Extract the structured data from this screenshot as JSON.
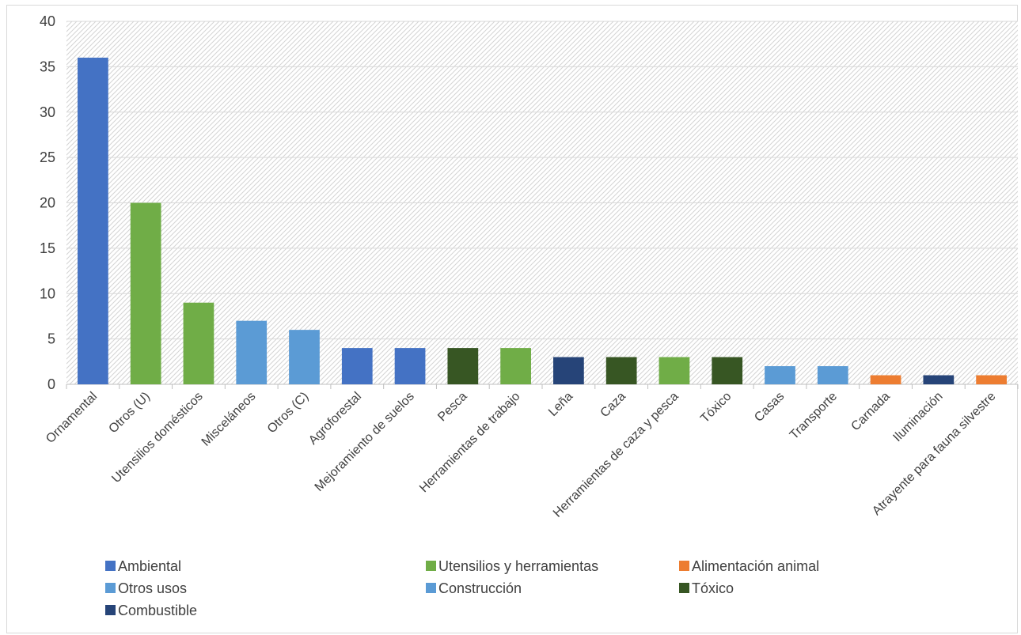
{
  "chart_data": {
    "type": "bar",
    "title": "",
    "xlabel": "",
    "ylabel": "",
    "ylim": [
      0,
      40
    ],
    "yticks": [
      0,
      5,
      10,
      15,
      20,
      25,
      30,
      35,
      40
    ],
    "grid": true,
    "legend_position": "bottom",
    "groups": [
      {
        "name": "Ambiental",
        "color": "#4472C4"
      },
      {
        "name": "Utensilios y herramientas",
        "color": "#70AD47"
      },
      {
        "name": "Alimentación animal",
        "color": "#ED7D31"
      },
      {
        "name": "Otros usos",
        "color": "#5B9BD5"
      },
      {
        "name": "Construcción",
        "color": "#5B9BD5"
      },
      {
        "name": "Tóxico",
        "color": "#375623"
      },
      {
        "name": "Combustible",
        "color": "#264478"
      }
    ],
    "categories": [
      "Ornamental",
      "Otros (U)",
      "Utensilios domésticos",
      "Misceláneos",
      "Otros (C)",
      "Agroforestal",
      "Mejoramiento de suelos",
      "Pesca",
      "Herramientas de trabajo",
      "Leña",
      "Caza",
      "Herramientas de caza y pesca",
      "Tóxico",
      "Casas",
      "Transporte",
      "Carnada",
      "Iluminación",
      "Atrayente para fauna silvestre"
    ],
    "values": [
      36,
      20,
      9,
      7,
      6,
      4,
      4,
      4,
      4,
      3,
      3,
      3,
      3,
      2,
      2,
      1,
      1,
      1
    ],
    "bar_groups": [
      "Ambiental",
      "Utensilios y herramientas",
      "Utensilios y herramientas",
      "Otros usos",
      "Otros usos",
      "Ambiental",
      "Ambiental",
      "Tóxico",
      "Utensilios y herramientas",
      "Combustible",
      "Tóxico",
      "Utensilios y herramientas",
      "Tóxico",
      "Construcción",
      "Construcción",
      "Alimentación animal",
      "Combustible",
      "Alimentación animal"
    ]
  }
}
